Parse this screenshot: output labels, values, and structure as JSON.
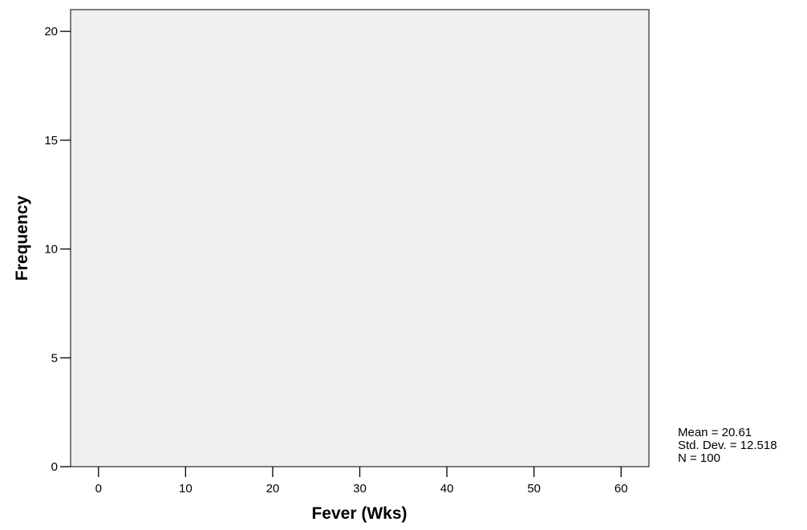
{
  "chart_data": {
    "type": "bar",
    "title": "",
    "xlabel": "Fever (Wks)",
    "ylabel": "Frequency",
    "xlim": [
      -3.2,
      63.2
    ],
    "ylim": [
      0,
      21
    ],
    "xticks": [
      0,
      10,
      20,
      30,
      40,
      50,
      60
    ],
    "yticks": [
      0,
      5,
      10,
      15,
      20
    ],
    "grid": false,
    "background": "#efefef",
    "bins": [],
    "values": []
  },
  "stats": {
    "mean": "Mean = 20.61",
    "std_dev": "Std. Dev. = 12.518",
    "n": "N = 100"
  }
}
